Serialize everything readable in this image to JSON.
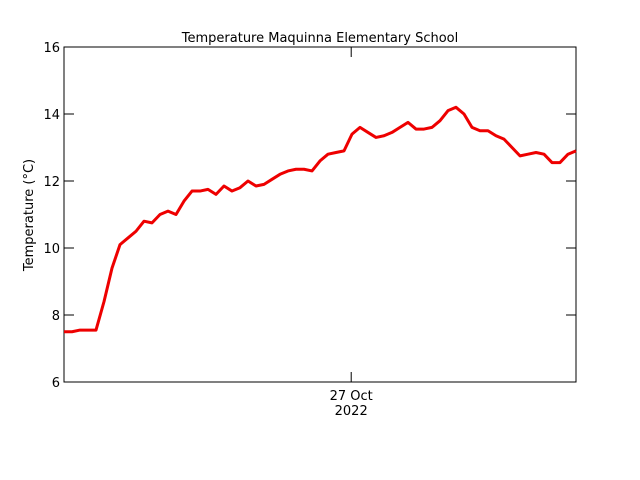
{
  "chart_data": {
    "type": "line",
    "title": "Temperature Maquinna Elementary School",
    "y_label": "Temperature (°C)",
    "series": [
      {
        "name": "Temperature",
        "color": "#ee0000",
        "values": [
          7.5,
          7.5,
          7.55,
          7.55,
          7.55,
          8.4,
          9.4,
          10.1,
          10.3,
          10.5,
          10.8,
          10.75,
          11.0,
          11.1,
          11.0,
          11.4,
          11.7,
          11.7,
          11.75,
          11.6,
          11.85,
          11.7,
          11.8,
          12.0,
          11.85,
          11.9,
          12.05,
          12.2,
          12.3,
          12.35,
          12.35,
          12.3,
          12.6,
          12.8,
          12.85,
          12.9,
          13.4,
          13.6,
          13.45,
          13.3,
          13.35,
          13.45,
          13.6,
          13.75,
          13.55,
          13.55,
          13.6,
          13.8,
          14.1,
          14.2,
          14.0,
          13.6,
          13.5,
          13.5,
          13.35,
          13.25,
          13.0,
          12.75,
          12.8,
          12.85,
          12.8,
          12.55,
          12.55,
          12.8,
          12.9
        ]
      }
    ],
    "xlim": [
      0,
      64
    ],
    "xticks": [
      {
        "value": 35.9,
        "label": "27 Oct 2022"
      }
    ],
    "ylim": [
      6,
      16
    ],
    "yticks": [
      6,
      8,
      10,
      12,
      14,
      16
    ]
  }
}
